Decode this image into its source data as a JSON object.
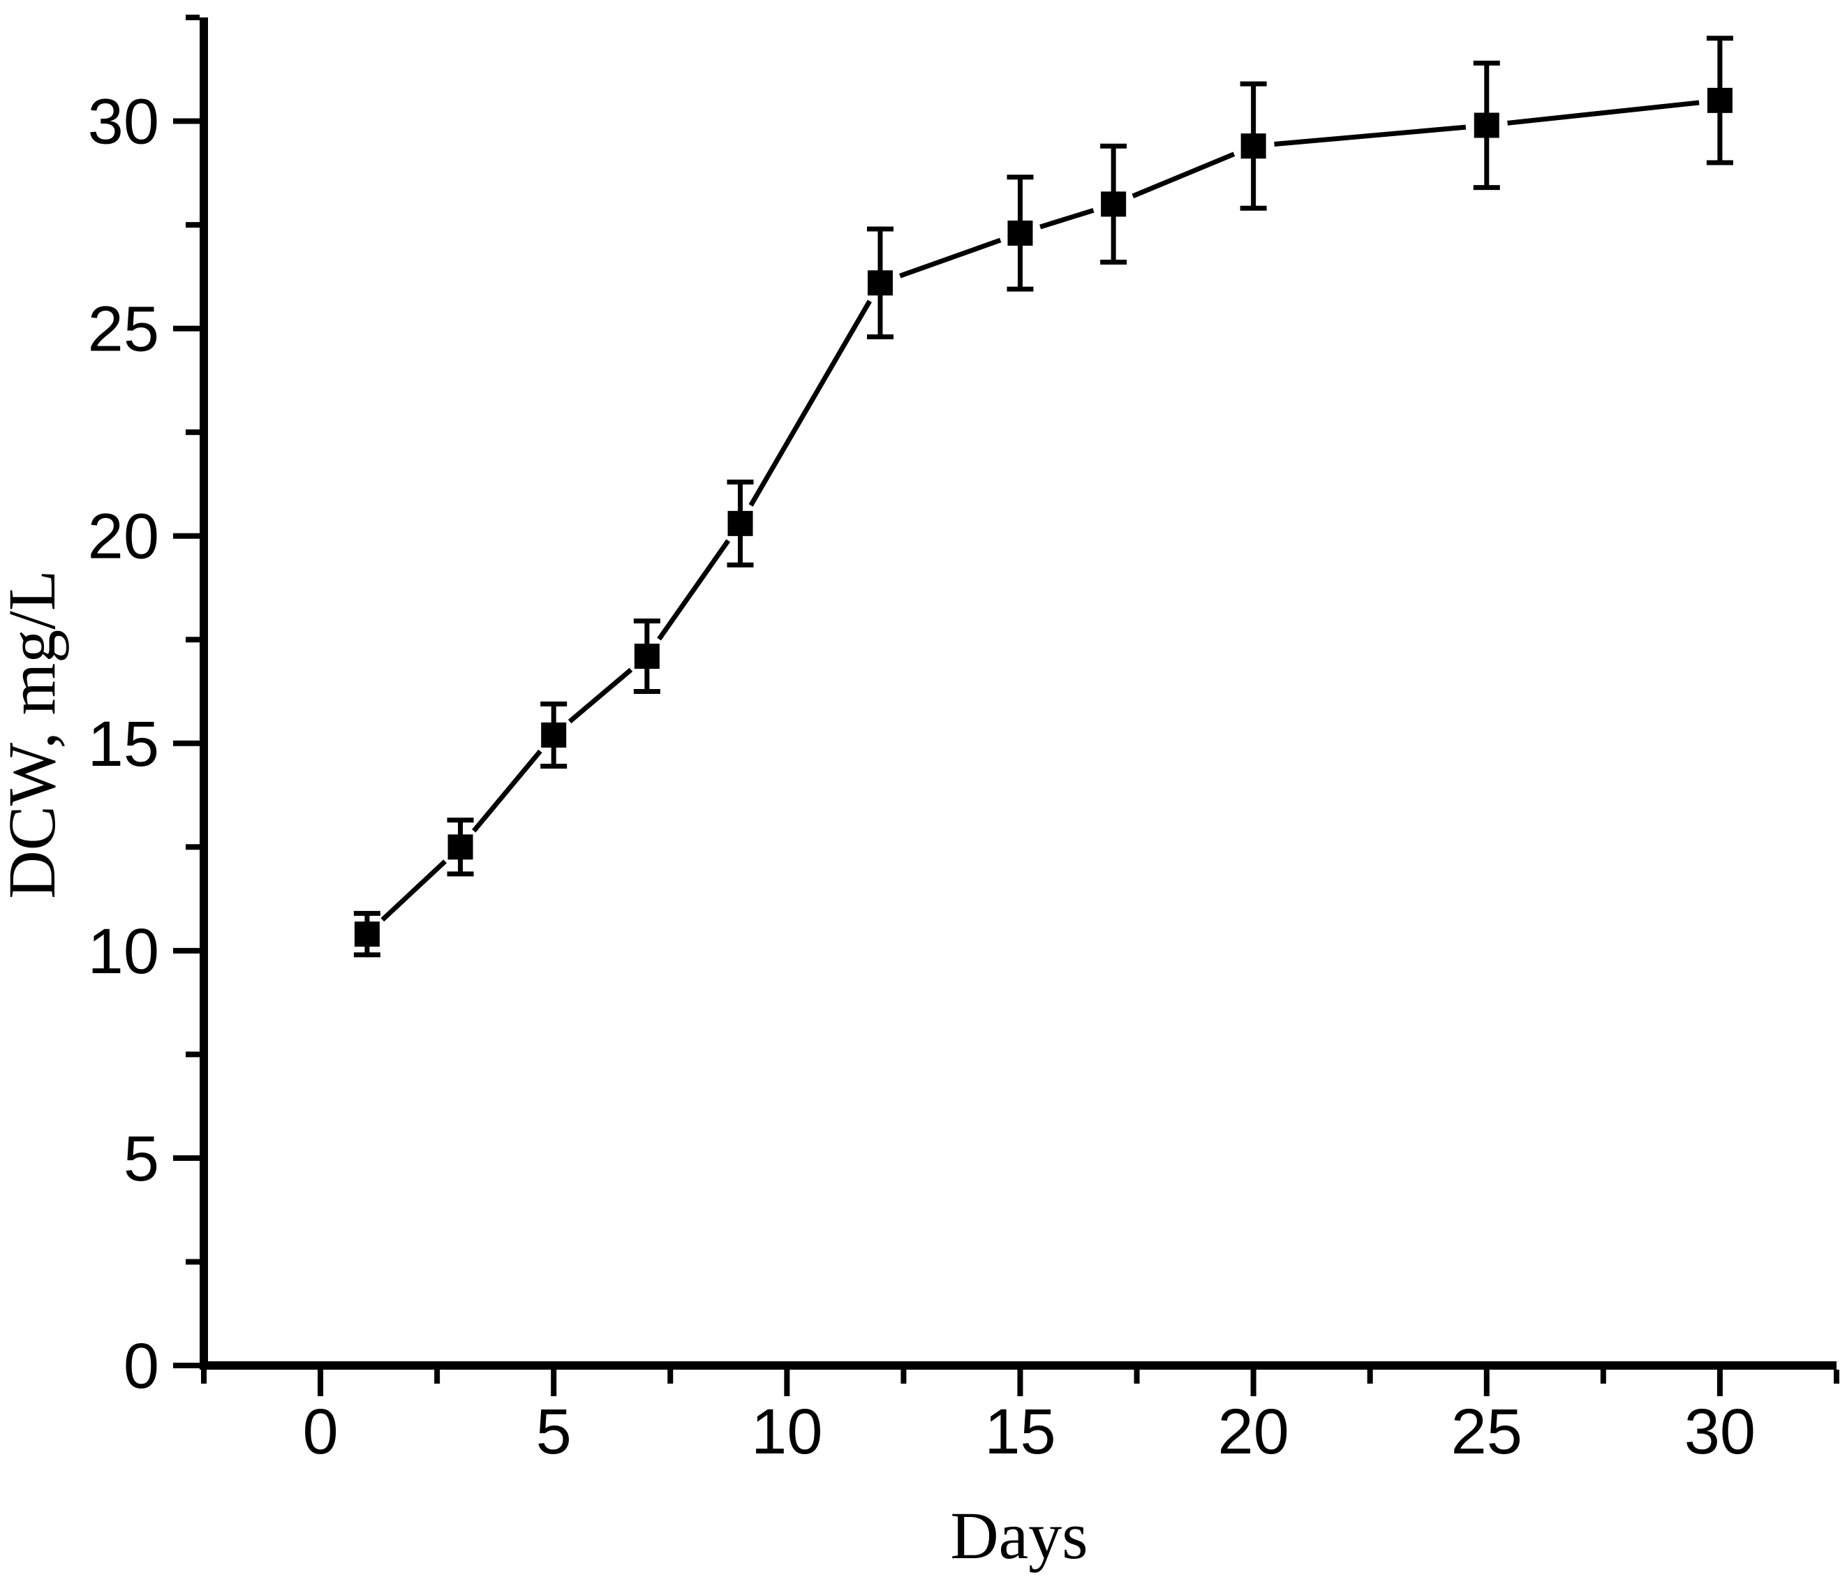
{
  "figure": {
    "background": "#ffffff",
    "ink": "#000000"
  },
  "chart_data": {
    "type": "line",
    "title": "",
    "xlabel": "Days",
    "ylabel": "DCW, mg/L",
    "x": [
      1,
      3,
      5,
      7,
      9,
      12,
      15,
      17,
      20,
      25,
      30
    ],
    "series": [
      {
        "name": "DCW",
        "marker": "filled-square",
        "color": "#000000",
        "values": [
          10.4,
          12.5,
          15.2,
          17.1,
          20.3,
          26.1,
          27.3,
          28.0,
          29.4,
          29.9,
          30.5
        ],
        "errors": [
          0.5,
          0.65,
          0.75,
          0.85,
          1.0,
          1.3,
          1.35,
          1.4,
          1.5,
          1.5,
          1.5
        ]
      }
    ],
    "xlim": [
      -2.5,
      32.5
    ],
    "ylim": [
      0,
      32.5
    ],
    "x_major_ticks": [
      0,
      5,
      10,
      15,
      20,
      25,
      30
    ],
    "y_major_ticks": [
      0,
      5,
      10,
      15,
      20,
      25,
      30
    ],
    "x_tick_labels": [
      "0",
      "5",
      "10",
      "15",
      "20",
      "25",
      "30"
    ],
    "y_tick_labels": [
      "0",
      "5",
      "10",
      "15",
      "20",
      "25",
      "30"
    ],
    "minor_tick_interval": 2.5,
    "error_bars": true,
    "grid": false,
    "legend": "none"
  }
}
